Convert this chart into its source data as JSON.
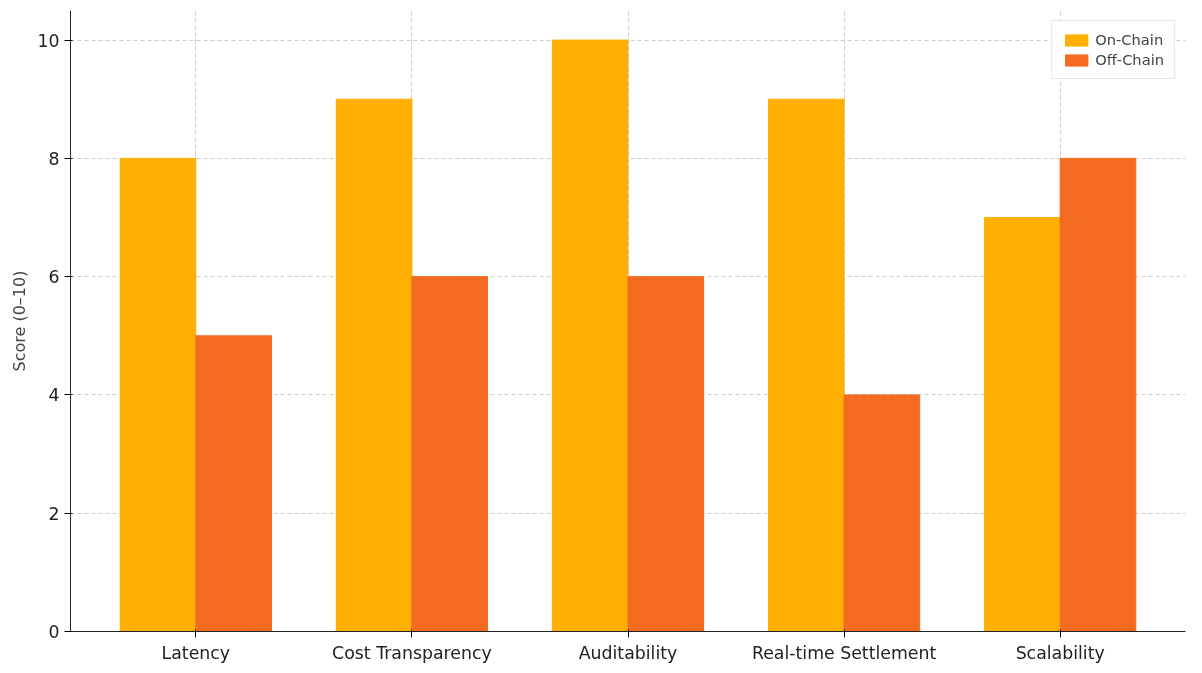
{
  "chart_data": {
    "type": "bar",
    "ylabel": "Score (0–10)",
    "categories": [
      "Latency",
      "Cost Transparency",
      "Auditability",
      "Real-time Settlement",
      "Scalability"
    ],
    "series": [
      {
        "name": "On-Chain",
        "color": "#ffb000",
        "values": [
          8,
          9,
          10,
          9,
          7
        ]
      },
      {
        "name": "Off-Chain",
        "color": "#f26b21",
        "values": [
          5,
          6,
          6,
          4,
          8
        ]
      }
    ],
    "ylim": [
      0,
      10.5
    ],
    "yticks": [
      0,
      2,
      4,
      6,
      8,
      10
    ],
    "grid": true,
    "legend": "top right"
  }
}
